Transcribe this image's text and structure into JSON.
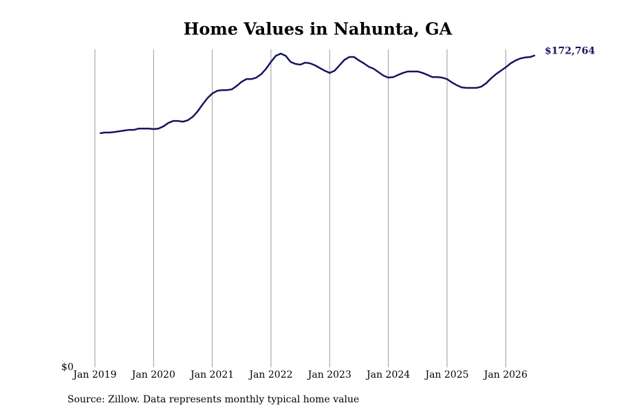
{
  "chart_data": {
    "type": "line",
    "title": "Home Values in Nahunta, GA",
    "source": "Source: Zillow. Data represents monthly typical home value",
    "x": [
      "2019-02",
      "2019-03",
      "2019-04",
      "2019-05",
      "2019-06",
      "2019-07",
      "2019-08",
      "2019-09",
      "2019-10",
      "2019-11",
      "2019-12",
      "2020-01",
      "2020-02",
      "2020-03",
      "2020-04",
      "2020-05",
      "2020-06",
      "2020-07",
      "2020-08",
      "2020-09",
      "2020-10",
      "2020-11",
      "2020-12",
      "2021-01",
      "2021-02",
      "2021-03",
      "2021-04",
      "2021-05",
      "2021-06",
      "2021-07",
      "2021-08",
      "2021-09",
      "2021-10",
      "2021-11",
      "2021-12",
      "2022-01",
      "2022-02",
      "2022-03",
      "2022-04",
      "2022-05",
      "2022-06",
      "2022-07",
      "2022-08",
      "2022-09",
      "2022-10",
      "2022-11",
      "2022-12",
      "2023-01",
      "2023-02",
      "2023-03",
      "2023-04",
      "2023-05",
      "2023-06",
      "2023-07",
      "2023-08",
      "2023-09",
      "2023-10",
      "2023-11",
      "2023-12",
      "2024-01",
      "2024-02",
      "2024-03",
      "2024-04",
      "2024-05",
      "2024-06",
      "2024-07",
      "2024-08",
      "2024-09",
      "2024-10",
      "2024-11",
      "2024-12",
      "2025-01",
      "2025-02",
      "2025-03",
      "2025-04",
      "2025-05",
      "2025-06",
      "2025-07",
      "2025-08",
      "2025-09",
      "2025-10",
      "2025-11",
      "2025-12",
      "2026-01",
      "2026-02",
      "2026-03",
      "2026-04",
      "2026-05",
      "2026-06",
      "2026-07"
    ],
    "series": [
      {
        "name": "Home value",
        "color": "#14145e",
        "values": [
          129600,
          130000,
          130000,
          130300,
          130700,
          131100,
          131500,
          131500,
          132200,
          132200,
          132200,
          131900,
          132200,
          133400,
          135300,
          136400,
          136400,
          136000,
          136800,
          138700,
          141700,
          145500,
          149000,
          151600,
          153100,
          153500,
          153500,
          153900,
          155800,
          158100,
          159600,
          159600,
          160400,
          162300,
          165300,
          169100,
          172500,
          173700,
          172500,
          169100,
          168000,
          167600,
          168700,
          168300,
          167200,
          165700,
          164200,
          163000,
          164200,
          167200,
          170200,
          171800,
          171800,
          169900,
          168300,
          166400,
          165300,
          163400,
          161500,
          160400,
          160700,
          161900,
          163000,
          163800,
          163800,
          163800,
          163000,
          161900,
          160700,
          160700,
          160400,
          159600,
          157700,
          156200,
          155000,
          154700,
          154700,
          154700,
          155400,
          157300,
          160000,
          162300,
          164200,
          166100,
          168300,
          169900,
          171000,
          171600,
          171800,
          172764
        ],
        "value_labels": [
          null,
          null,
          null,
          null,
          null,
          null,
          null,
          null,
          null,
          null,
          null,
          null,
          null,
          null,
          null,
          null,
          null,
          null,
          null,
          null,
          null,
          null,
          null,
          null,
          null,
          null,
          null,
          null,
          null,
          null,
          null,
          null,
          null,
          null,
          null,
          null,
          null,
          null,
          null,
          null,
          null,
          null,
          null,
          null,
          null,
          null,
          null,
          null,
          null,
          null,
          null,
          null,
          null,
          null,
          null,
          null,
          null,
          null,
          null,
          null,
          null,
          null,
          null,
          null,
          null,
          null,
          null,
          null,
          null,
          null,
          null,
          null,
          null,
          null,
          null,
          null,
          null,
          null,
          null,
          null,
          null,
          null,
          null,
          null,
          null,
          null,
          null,
          null,
          null,
          "$172,764"
        ]
      }
    ],
    "xlim": [
      "2019-01",
      "2026-07"
    ],
    "xticks": [
      {
        "value": "2019-01",
        "label": "Jan 2019"
      },
      {
        "value": "2020-01",
        "label": "Jan 2020"
      },
      {
        "value": "2021-01",
        "label": "Jan 2021"
      },
      {
        "value": "2022-01",
        "label": "Jan 2022"
      },
      {
        "value": "2023-01",
        "label": "Jan 2023"
      },
      {
        "value": "2024-01",
        "label": "Jan 2024"
      },
      {
        "value": "2025-01",
        "label": "Jan 2025"
      },
      {
        "value": "2026-01",
        "label": "Jan 2026"
      }
    ],
    "ylim": [
      0,
      176000
    ],
    "yticks": [
      {
        "value": 0,
        "label": "$0"
      }
    ],
    "grid": true
  }
}
